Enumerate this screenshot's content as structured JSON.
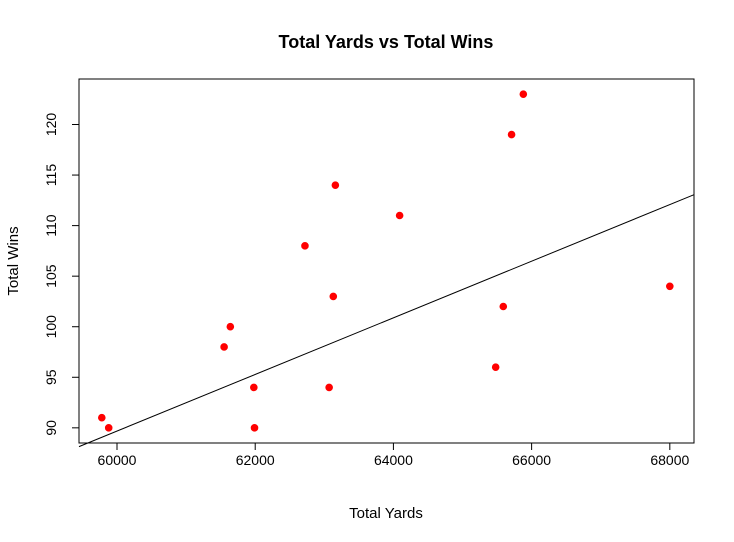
{
  "chart_data": {
    "type": "scatter",
    "title": "Total Yards vs Total Wins",
    "xlabel": "Total Yards",
    "ylabel": "Total Wins",
    "xlim": [
      59450,
      68350
    ],
    "ylim": [
      88.5,
      124.5
    ],
    "x_ticks": [
      60000,
      62000,
      64000,
      66000,
      68000
    ],
    "y_ticks": [
      90,
      95,
      100,
      105,
      110,
      115,
      120
    ],
    "x_tick_labels": [
      "60000",
      "62000",
      "64000",
      "66000",
      "68000"
    ],
    "y_tick_labels": [
      "90",
      "95",
      "100",
      "105",
      "110",
      "115",
      "120"
    ],
    "point_color": "#ff0000",
    "line_color": "#000000",
    "grid": false,
    "legend": "none",
    "points": [
      {
        "x": 59780,
        "y": 91
      },
      {
        "x": 59880,
        "y": 90
      },
      {
        "x": 61550,
        "y": 98
      },
      {
        "x": 61640,
        "y": 100
      },
      {
        "x": 61980,
        "y": 94
      },
      {
        "x": 61990,
        "y": 90
      },
      {
        "x": 62720,
        "y": 108
      },
      {
        "x": 63070,
        "y": 94
      },
      {
        "x": 63130,
        "y": 103
      },
      {
        "x": 63160,
        "y": 114
      },
      {
        "x": 64090,
        "y": 111
      },
      {
        "x": 65480,
        "y": 96
      },
      {
        "x": 65590,
        "y": 102
      },
      {
        "x": 65710,
        "y": 119
      },
      {
        "x": 65880,
        "y": 123
      },
      {
        "x": 68000,
        "y": 104
      }
    ],
    "fit_line": {
      "intercept": -78.32,
      "slope": 0.0028
    }
  }
}
